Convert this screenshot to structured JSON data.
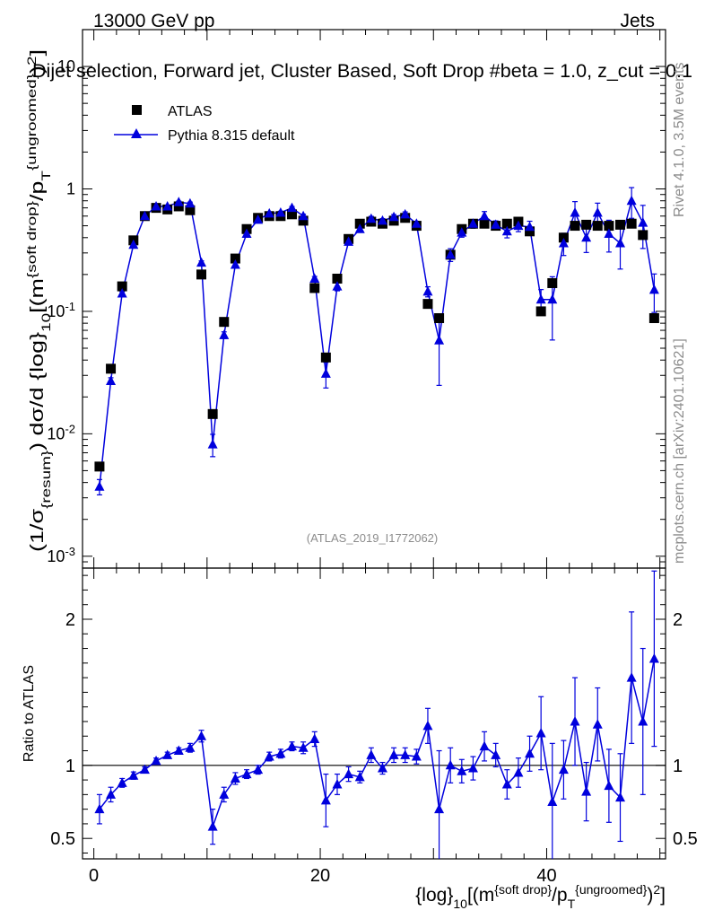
{
  "header": {
    "energy_label": "13000 GeV pp",
    "category_label": "Jets",
    "plot_title": "Dijet selection, Forward jet, Cluster Based, Soft Drop #beta = 1.0, z_cut = 0.1"
  },
  "side_labels": {
    "rivet": "Rivet 4.1.0,  3.5M events",
    "mcplots": "mcplots.cern.ch [arXiv:2401.10621]"
  },
  "legend": {
    "data_label": "ATLAS",
    "mc_label": "Pythia 8.315 default"
  },
  "analysis_id": "(ATLAS_2019_I1772062)",
  "colors": {
    "data": "#000000",
    "mc": "#0000dd"
  },
  "chart_data": [
    {
      "type": "scatter",
      "panel": "main",
      "title": "Dijet selection, Forward jet, Cluster Based, Soft Drop #beta = 1.0, z_cut = 0.1",
      "ylabel": "(1/σ_{resum}) dσ/d {log}_10[(m^{soft drop}/p_T^{ungroomed})^2]",
      "yscale": "log",
      "ylim": [
        0.0008,
        20
      ],
      "xlim": [
        -1,
        50.5
      ],
      "y_tick_labels": [
        "10^-3",
        "10^-2",
        "10^-1",
        "1",
        "10"
      ],
      "x": [
        0.5,
        1.5,
        2.5,
        3.5,
        4.5,
        5.5,
        6.5,
        7.5,
        8.5,
        9.5,
        10.5,
        11.5,
        12.5,
        13.5,
        14.5,
        15.5,
        16.5,
        17.5,
        18.5,
        19.5,
        20.5,
        21.5,
        22.5,
        23.5,
        24.5,
        25.5,
        26.5,
        27.5,
        28.5,
        29.5,
        30.5,
        31.5,
        32.5,
        33.5,
        34.5,
        35.5,
        36.5,
        37.5,
        38.5,
        39.5,
        40.5,
        41.5,
        42.5,
        43.5,
        44.5,
        45.5,
        46.5,
        47.5,
        48.5,
        49.5
      ],
      "series": [
        {
          "name": "ATLAS",
          "marker": "square",
          "values": [
            0.0054,
            0.034,
            0.16,
            0.38,
            0.6,
            0.7,
            0.68,
            0.72,
            0.67,
            0.2,
            0.0145,
            0.082,
            0.27,
            0.47,
            0.58,
            0.6,
            0.6,
            0.62,
            0.55,
            0.155,
            0.042,
            0.185,
            0.39,
            0.52,
            0.54,
            0.52,
            0.55,
            0.58,
            0.5,
            0.115,
            0.088,
            0.29,
            0.47,
            0.52,
            0.52,
            0.5,
            0.52,
            0.54,
            0.45,
            0.1,
            0.17,
            0.4,
            0.5,
            0.51,
            0.5,
            0.5,
            0.51,
            0.52,
            0.42,
            0.088
          ]
        },
        {
          "name": "Pythia 8.315 default",
          "marker": "triangle",
          "values": [
            0.0037,
            0.027,
            0.14,
            0.35,
            0.6,
            0.72,
            0.72,
            0.78,
            0.76,
            0.25,
            0.0082,
            0.064,
            0.24,
            0.43,
            0.56,
            0.63,
            0.64,
            0.7,
            0.6,
            0.185,
            0.031,
            0.16,
            0.37,
            0.47,
            0.57,
            0.55,
            0.59,
            0.62,
            0.52,
            0.145,
            0.058,
            0.29,
            0.44,
            0.52,
            0.6,
            0.51,
            0.45,
            0.5,
            0.49,
            0.125,
            0.125,
            0.36,
            0.64,
            0.4,
            0.64,
            0.43,
            0.36,
            0.8,
            0.53,
            0.15
          ]
        }
      ]
    },
    {
      "type": "line",
      "panel": "ratio",
      "ylabel": "Ratio to ATLAS",
      "xlabel": "{log}_10[(m^{soft drop}/p_T^{ungroomed})^2]",
      "ylim": [
        0.36,
        2.35
      ],
      "xlim": [
        -1,
        50.5
      ],
      "y_tick_labels": [
        "0.5",
        "1",
        "2"
      ],
      "x_tick_labels": [
        "0",
        "20",
        "40"
      ],
      "reference_line": 1,
      "series": [
        {
          "name": "Pythia 8.315 default / ATLAS",
          "values": [
            0.7,
            0.8,
            0.88,
            0.93,
            0.97,
            1.03,
            1.07,
            1.1,
            1.12,
            1.2,
            0.58,
            0.8,
            0.91,
            0.94,
            0.97,
            1.06,
            1.08,
            1.13,
            1.12,
            1.18,
            0.76,
            0.87,
            0.94,
            0.92,
            1.07,
            0.98,
            1.07,
            1.07,
            1.06,
            1.27,
            0.7,
            1.0,
            0.96,
            0.98,
            1.13,
            1.07,
            0.87,
            0.95,
            1.08,
            1.22,
            0.75,
            0.97,
            1.3,
            0.82,
            1.28,
            0.86,
            0.78,
            1.6,
            1.3,
            1.73
          ],
          "errors": [
            0.1,
            0.05,
            0.03,
            0.025,
            0.02,
            0.02,
            0.02,
            0.02,
            0.03,
            0.04,
            0.12,
            0.05,
            0.04,
            0.03,
            0.03,
            0.03,
            0.03,
            0.03,
            0.04,
            0.05,
            0.18,
            0.07,
            0.05,
            0.04,
            0.05,
            0.04,
            0.05,
            0.05,
            0.05,
            0.12,
            0.4,
            0.12,
            0.08,
            0.08,
            0.1,
            0.08,
            0.1,
            0.1,
            0.12,
            0.25,
            0.4,
            0.2,
            0.3,
            0.2,
            0.25,
            0.25,
            0.3,
            0.45,
            0.5,
            0.6
          ]
        }
      ]
    }
  ]
}
